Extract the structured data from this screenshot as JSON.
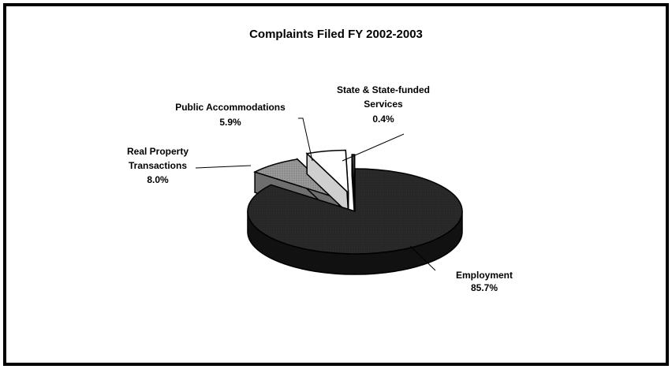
{
  "chart_data": {
    "type": "pie",
    "style": "3d-exploded",
    "title": "Complaints Filed FY 2002-2003",
    "slices": [
      {
        "label": "Employment",
        "label_lines": [
          "Employment"
        ],
        "pct_text": "85.7%",
        "value": 85.7,
        "color": "#2a2a2a",
        "side": "#111111"
      },
      {
        "label": "Real Property Transactions",
        "label_lines": [
          "Real Property",
          "Transactions"
        ],
        "pct_text": "8.0%",
        "value": 8.0,
        "color": "#9a9a9a",
        "side": "#6e6e6e"
      },
      {
        "label": "Public Accommodations",
        "label_lines": [
          "Public Accommodations"
        ],
        "pct_text": "5.9%",
        "value": 5.9,
        "color": "#ffffff",
        "side": "#cfcfcf"
      },
      {
        "label": "State & State-funded Services",
        "label_lines": [
          "State & State-funded",
          "Services"
        ],
        "pct_text": "0.4%",
        "value": 0.4,
        "color": "#555555",
        "side": "#333333"
      }
    ],
    "legend": "none"
  }
}
